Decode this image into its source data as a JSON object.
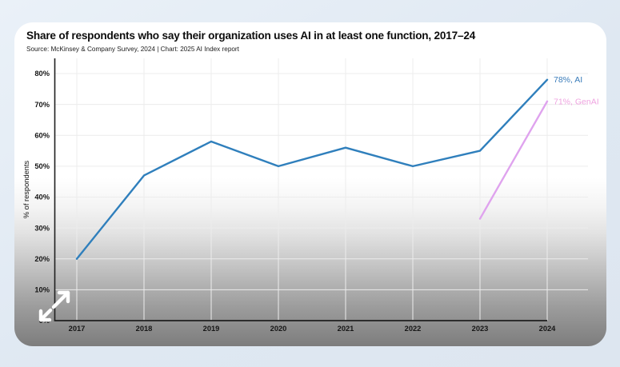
{
  "window": {
    "background_color_top": "#eaf1f8",
    "background_color_bottom": "#dde6f0",
    "card_background_top": "#ffffff",
    "card_background_bottom": "#7d7d7d"
  },
  "header": {
    "title": "Share of respondents who say their organization uses AI in at least one function, 2017–24",
    "source": "Source: McKinsey & Company Survey, 2024 | Chart: 2025 AI Index report"
  },
  "icons": {
    "expand": "diagonal-expand-arrows",
    "expand_color": "#ffffff"
  },
  "colors": {
    "ai_line": "#2f7fbc",
    "genai_line": "#dfa3ee",
    "axis": "#1f1f1f",
    "gridline": "#ececec",
    "tick_label": "#161616"
  },
  "chart_data": {
    "type": "line",
    "title": "Share of respondents who say their organization uses AI in at least one function, 2017–24",
    "x": [
      2017,
      2018,
      2019,
      2020,
      2021,
      2022,
      2023,
      2024
    ],
    "series": [
      {
        "name": "AI",
        "color": "#2f7fbc",
        "values": [
          20,
          47,
          58,
          50,
          56,
          50,
          55,
          78
        ],
        "end_label": "78%, AI",
        "end_label_color": "#3a7cba"
      },
      {
        "name": "GenAI",
        "color": "#dfa3ee",
        "values": [
          null,
          null,
          null,
          null,
          null,
          null,
          33,
          71
        ],
        "end_label": "71%, GenAI",
        "end_label_color": "#efa3e0"
      }
    ],
    "xlabel": "",
    "ylabel": "% of respondents",
    "ylim": [
      0,
      80
    ],
    "ytick_step": 10,
    "ytick_suffix": "%",
    "grid": true,
    "legend_position": "line-end-labels"
  }
}
